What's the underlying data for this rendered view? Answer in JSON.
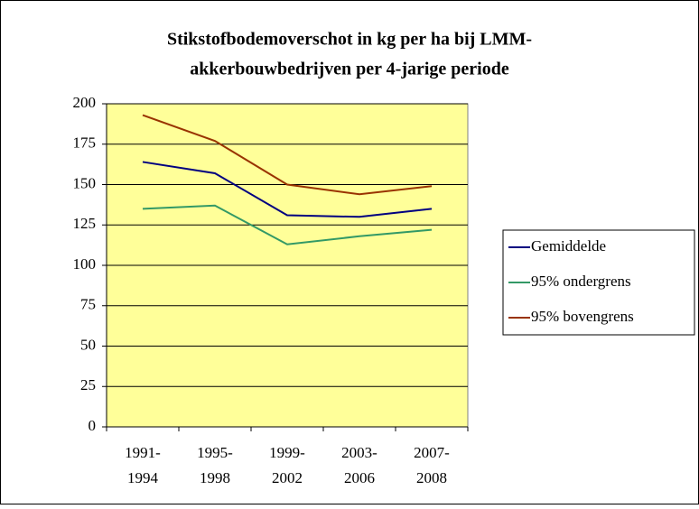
{
  "chart_data": {
    "type": "line",
    "title": [
      "Stikstofbodemoverschot in kg per ha bij LMM-",
      "akkerbouwbedrijven per 4-jarige periode"
    ],
    "categories": [
      "1991-1994",
      "1995-1998",
      "1999-2002",
      "2003-2006",
      "2007-2008"
    ],
    "series": [
      {
        "name": "Gemiddelde",
        "color": "#000080",
        "values": [
          164,
          157,
          131,
          130,
          135
        ]
      },
      {
        "name": "95% ondergrens",
        "color": "#339966",
        "values": [
          135,
          137,
          113,
          118,
          122
        ]
      },
      {
        "name": "95% bovengrens",
        "color": "#993300",
        "values": [
          193,
          177,
          150,
          144,
          149
        ]
      }
    ],
    "ylim": [
      0,
      200
    ],
    "yticks": [
      0,
      25,
      50,
      75,
      100,
      125,
      150,
      175,
      200
    ],
    "grid": true,
    "legend": "right",
    "plot_background": "#ffff99"
  }
}
